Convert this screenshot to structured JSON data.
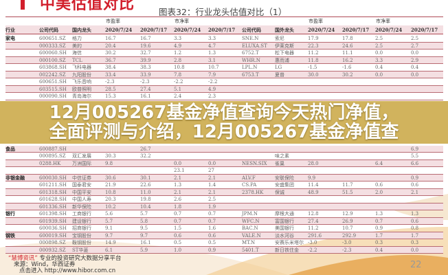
{
  "document": {
    "section_title": "中美估值对比",
    "figure_title": "图表32：行业龙头估值对比（1）",
    "group_headers": [
      "市盈率",
      "市净率",
      "市盈率",
      "市净率"
    ],
    "columns": [
      "行业",
      "公司代码",
      "国内龙头",
      "2020/7/24",
      "2020/7/17",
      "2020/7/24",
      "2020/7/17",
      "公司代码",
      "国外龙头",
      "2020/7/24",
      "2020/7/17",
      "2020/7/24",
      "2020/7/17"
    ],
    "rows": [
      [
        "家电",
        "600651.SZ",
        "格力",
        "16.7",
        "16.7",
        "3.3",
        "3.3",
        "SNE.N",
        "索尼",
        "17.9",
        "17.8",
        "2.5",
        "2.5"
      ],
      [
        "",
        "000333.SZ",
        "美的",
        "20.4",
        "19.6",
        "4.9",
        "4.7",
        "ELUXA.ST",
        "伊莱克斯",
        "22.3",
        "24.6",
        "2.5",
        "2.7"
      ],
      [
        "",
        "600060.SH",
        "海信",
        "30.2",
        "32.7",
        "1.2",
        "1.3",
        "6752.T",
        "松下电器",
        "11.2",
        "11.1",
        "0.0",
        "0.0"
      ],
      [
        "",
        "000100.SZ",
        "TCL",
        "36.7",
        "39.9",
        "2.8",
        "3.1",
        "WHR.N",
        "惠而浦",
        "11.8",
        "16.2",
        "3.3",
        "2.9"
      ],
      [
        "",
        "603868.SH",
        "飞科电器",
        "38.4",
        "38.3",
        "10.8",
        "10.7",
        "LPL.N",
        "LG",
        "-1.5",
        "-1.6",
        "0.4",
        "0.4"
      ],
      [
        "",
        "002242.SZ",
        "九阳股份",
        "33.4",
        "33.9",
        "7.8",
        "7.9",
        "6753.T",
        "夏普",
        "30.0",
        "30.2",
        "0.0",
        "0.0"
      ],
      [
        "",
        "600651.SH",
        "飞乐音响",
        "-2.3",
        "-2.3",
        "-2.2",
        "-2.2",
        "",
        "",
        "",
        "",
        "",
        ""
      ],
      [
        "",
        "603515.SH",
        "欧普照明",
        "28.5",
        "27.4",
        "5.1",
        "4.9",
        "",
        "",
        "",
        "",
        "",
        ""
      ],
      [
        "",
        "000090.SH",
        "青岛海尔",
        "15.3",
        "16.1",
        "2.4",
        "2.3",
        "",
        "",
        "",
        "",
        "",
        ""
      ],
      [
        "食品",
        "600887.SH",
        "",
        "",
        "26.7",
        "",
        "",
        "",
        "",
        "",
        "",
        "",
        "6.9"
      ],
      [
        "",
        "000895.SZ",
        "双汇发展",
        "30.3",
        "32.2",
        "",
        "",
        "",
        "味之素",
        "",
        "",
        "",
        "5.5"
      ],
      [
        "",
        "0288.HK",
        "万洲国际",
        "9.8",
        "",
        "0.0",
        "0.0",
        "NESN.SIX",
        "雀巢",
        "28.0",
        "",
        "6.4",
        "6.6"
      ],
      [
        "",
        "",
        "",
        "",
        "",
        "23.1",
        "27",
        "",
        "",
        "",
        "",
        "",
        ""
      ],
      [
        "非银金融",
        "600030.SH",
        "中信证券",
        "30.6",
        "30.1",
        "2.1",
        "2.1",
        "ALV.F",
        "安联保险",
        "9.9",
        "",
        "",
        "0.9"
      ],
      [
        "",
        "601211.SH",
        "国泰君安",
        "21.9",
        "22.6",
        "1.3",
        "1.4",
        "CS.PA",
        "安盛集团",
        "11.4",
        "11.7",
        "0.6",
        "0.6"
      ],
      [
        "",
        "601318.SH",
        "中国平安",
        "10.8",
        "11.0",
        "2.1",
        "2.1",
        "2378.HK",
        "保诚",
        "48.9",
        "51.5",
        "2.0",
        "2.1"
      ],
      [
        "",
        "601628.SH",
        "中国人寿",
        "20.3",
        "19.8",
        "2.6",
        "2.5",
        "",
        "",
        "",
        "",
        "",
        ""
      ],
      [
        "",
        "601336.SH",
        "新华保险",
        "10.2",
        "10.4",
        "1.8",
        "1.9",
        "",
        "",
        "",
        "",
        "",
        ""
      ],
      [
        "银行",
        "601398.SH",
        "工商银行",
        "5.6",
        "5.7",
        "0.7",
        "0.7",
        "JPM.N",
        "摩根大通",
        "12.8",
        "12.9",
        "1.3",
        "1.3"
      ],
      [
        "",
        "601939.SH",
        "建设银行",
        "5.7",
        "5.8",
        "0.7",
        "0.7",
        "WFC.N",
        "富国银行",
        "27.4",
        "26.9",
        "0.7",
        "0.6"
      ],
      [
        "",
        "600036.SH",
        "招商银行",
        "9.1",
        "9.5",
        "1.5",
        "1.6",
        "BAC.N",
        "美国银行",
        "11.2",
        "10.7",
        "0.9",
        "0.8"
      ],
      [
        "钢铁",
        "600019.SH",
        "宝钢股份",
        "9.7",
        "9.7",
        "0.6",
        "0.6",
        "VALE.N",
        "淡水河谷",
        "291.6",
        "292.9",
        "1.7",
        "1.7"
      ],
      [
        "",
        "000898.SZ",
        "鞍钢股份",
        "14.9",
        "16.1",
        "0.5",
        "0.5",
        "MT.N",
        "安赛乐米塔尔",
        "-3.0",
        "-3.0",
        "0.3",
        "0.3"
      ],
      [
        "",
        "000932.SZ",
        "ST华菱",
        "6.1",
        "5.9",
        "1.0",
        "0.9",
        "5401.T",
        "新日铁住金",
        "-2.2",
        "-2.3",
        "0.4",
        "0.0"
      ]
    ],
    "footer": {
      "brand": "“慧博资讯”",
      "tagline": "专业的投资研究大数据分享平台",
      "source": "来源：Wind，华西证券",
      "link": "点击进入 http://www.hibor.com.cn"
    },
    "page_number": "22"
  },
  "banner": {
    "line1": "12月005267基金净值查询今天热门净值，",
    "line2": "全面评测与介绍，12月005267基金净值查"
  },
  "colors": {
    "accent": "#d21f2c",
    "row_stripe": "#f4dfe2",
    "banner": "#c9a642"
  }
}
